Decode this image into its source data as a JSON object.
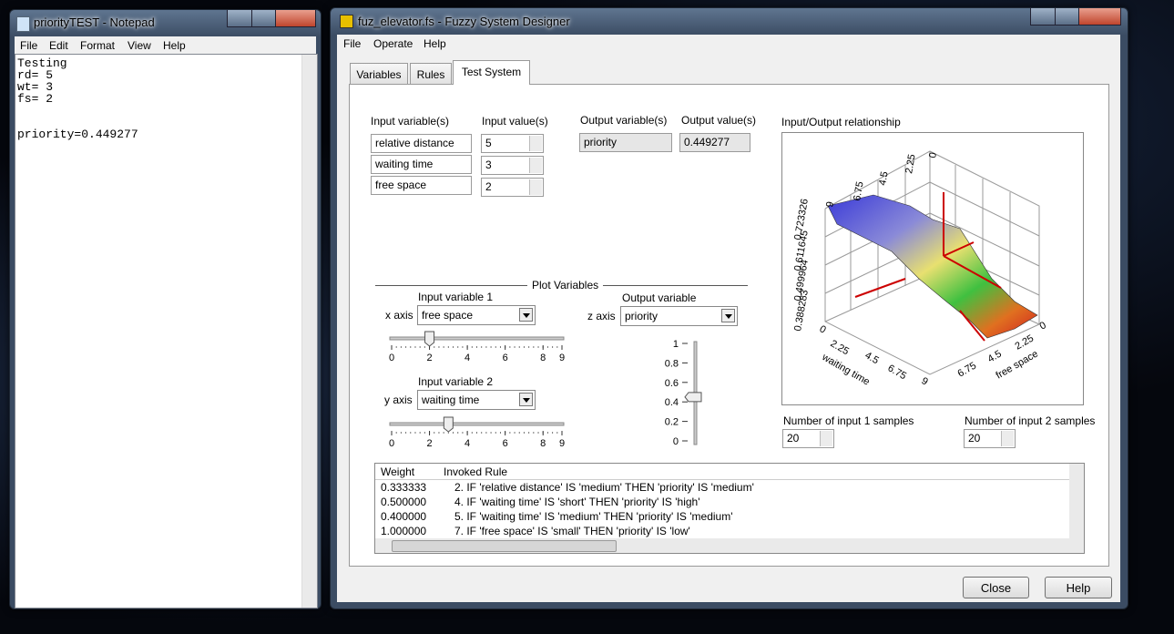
{
  "notepad": {
    "title": "priorityTEST - Notepad",
    "menu": [
      "File",
      "Edit",
      "Format",
      "View",
      "Help"
    ],
    "lines": [
      "Testing",
      "rd= 5",
      "wt= 3",
      "fs= 2",
      "priority=0.449277"
    ]
  },
  "designer": {
    "title": "fuz_elevator.fs - Fuzzy System Designer",
    "menu": [
      "File",
      "Operate",
      "Help"
    ],
    "tabs": [
      "Variables",
      "Rules",
      "Test System"
    ],
    "inputs": {
      "variables_label": "Input variable(s)",
      "values_label": "Input value(s)",
      "rows": [
        {
          "name": "relative distance",
          "value": "5"
        },
        {
          "name": "waiting time",
          "value": "3"
        },
        {
          "name": "free space",
          "value": "2"
        }
      ]
    },
    "outputs": {
      "variables_label": "Output variable(s)",
      "values_label": "Output value(s)",
      "name": "priority",
      "value": "0.449277"
    },
    "plot_variables": {
      "title": "Plot Variables",
      "input1": {
        "label": "Input variable 1",
        "axis": "x axis",
        "selected": "free space",
        "slider_value": 2,
        "ticks": [
          0,
          2,
          4,
          6,
          8,
          9
        ]
      },
      "input2": {
        "label": "Input variable 2",
        "axis": "y axis",
        "selected": "waiting time",
        "slider_value": 3,
        "ticks": [
          0,
          2,
          4,
          6,
          8,
          9
        ]
      },
      "output": {
        "label": "Output variable",
        "axis": "z axis",
        "selected": "priority",
        "slider_value": 0.45,
        "ticks": [
          1,
          0.8,
          0.6,
          0.4,
          0.2,
          0
        ]
      }
    },
    "plot": {
      "title": "Input/Output relationship",
      "z_ticks": [
        "0.723326",
        "0.611645",
        "0.499964",
        "0.388283"
      ],
      "back_ticks": [
        "9",
        "6.75",
        "4.5",
        "2.25",
        "0"
      ],
      "y_ticks": [
        "0",
        "2.25",
        "4.5",
        "6.75",
        "9"
      ],
      "y_label": "waiting time",
      "x_ticks": [
        "6.75",
        "4.5",
        "2.25",
        "0"
      ],
      "x_label": "free space"
    },
    "samples": {
      "input1_label": "Number of input 1 samples",
      "input1_value": "20",
      "input2_label": "Number of input 2 samples",
      "input2_value": "20"
    },
    "rules_table": {
      "headers": [
        "Weight",
        "Invoked Rule"
      ],
      "rows": [
        [
          "0.333333",
          "2. IF 'relative distance' IS 'medium' THEN 'priority' IS 'medium'"
        ],
        [
          "0.500000",
          "4. IF 'waiting time' IS 'short' THEN 'priority' IS 'high'"
        ],
        [
          "0.400000",
          "5. IF 'waiting time' IS 'medium' THEN 'priority' IS 'medium'"
        ],
        [
          "1.000000",
          "7. IF 'free space' IS 'small' THEN 'priority' IS 'low'"
        ]
      ]
    },
    "buttons": [
      "Close",
      "Help"
    ]
  }
}
